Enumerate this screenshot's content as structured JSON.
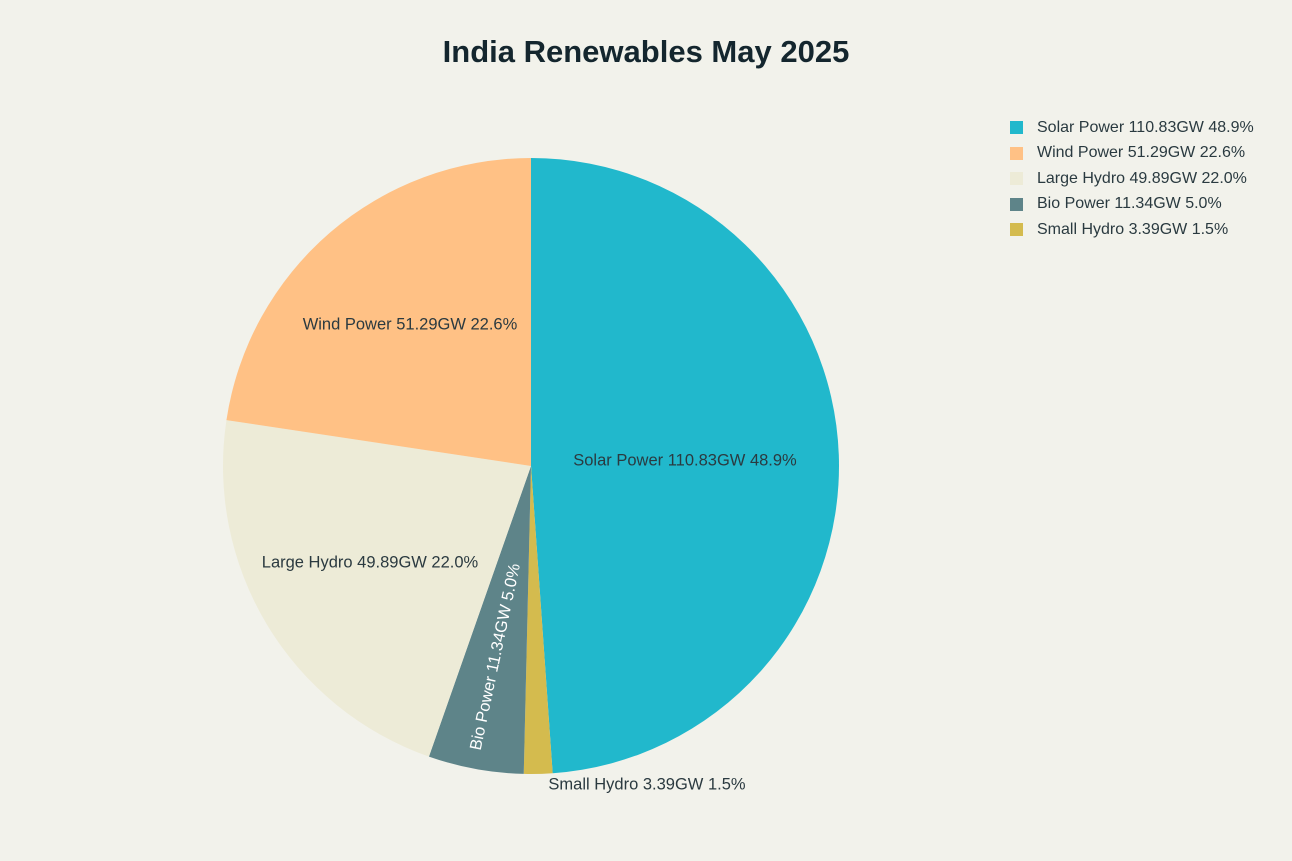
{
  "chart_data": {
    "type": "pie",
    "title": "India Renewables May 2025",
    "start_angle_deg": 0,
    "direction": "clockwise",
    "legend_position": "top-right",
    "slices": [
      {
        "name": "Solar Power",
        "value": 110.83,
        "unit": "GW",
        "percent": 48.9,
        "color": "#21B8CC",
        "label": "Solar Power 110.83GW 48.9%",
        "legend": "Solar Power 110.83GW 48.9%"
      },
      {
        "name": "Small Hydro",
        "value": 3.39,
        "unit": "GW",
        "percent": 1.5,
        "color": "#D4BB4E",
        "label": "Small Hydro 3.39GW 1.5%",
        "legend": "Small Hydro 3.39GW 1.5%"
      },
      {
        "name": "Bio Power",
        "value": 11.34,
        "unit": "GW",
        "percent": 5.0,
        "color": "#5E8489",
        "label": "Bio Power 11.34GW 5.0%",
        "legend": "Bio Power 11.34GW 5.0%"
      },
      {
        "name": "Large Hydro",
        "value": 49.89,
        "unit": "GW",
        "percent": 22.0,
        "color": "#EDEBD7",
        "label": "Large Hydro 49.89GW 22.0%",
        "legend": "Large Hydro 49.89GW 22.0%"
      },
      {
        "name": "Wind Power",
        "value": 51.29,
        "unit": "GW",
        "percent": 22.6,
        "color": "#FFC185",
        "label": "Wind Power 51.29GW 22.6%",
        "legend": "Wind Power 51.29GW 22.6%"
      }
    ],
    "legend_order": [
      "Solar Power",
      "Wind Power",
      "Large Hydro",
      "Bio Power",
      "Small Hydro"
    ]
  }
}
